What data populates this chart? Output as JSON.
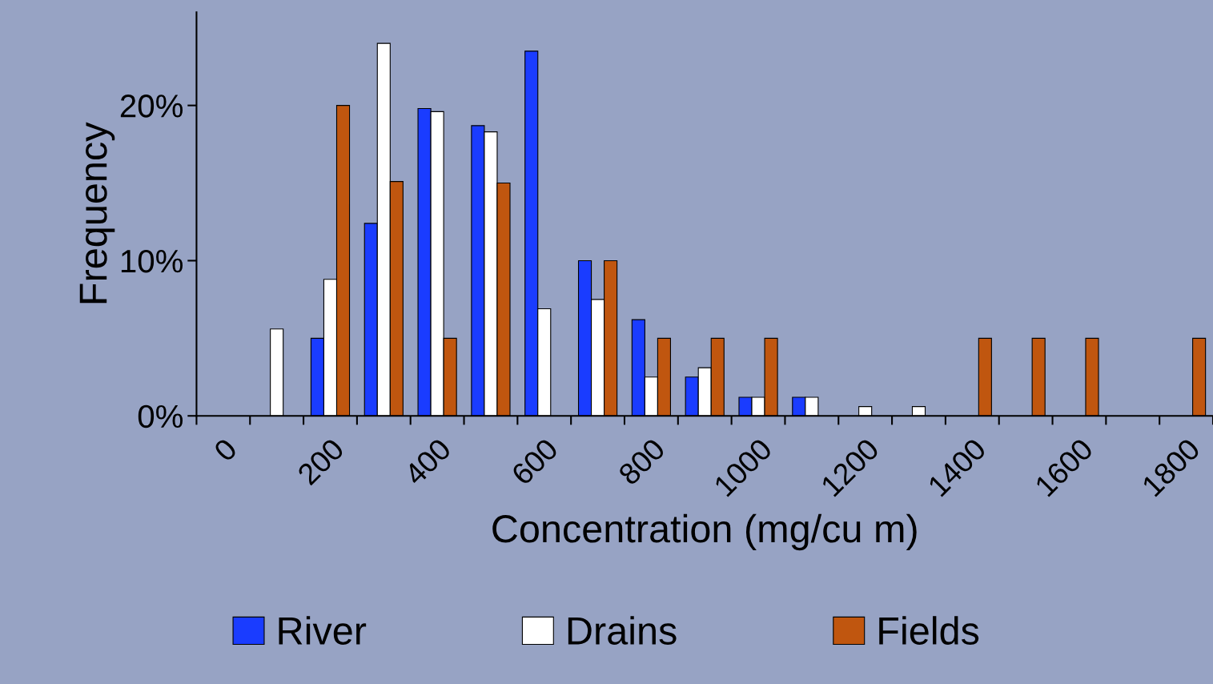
{
  "chart_data": {
    "type": "bar",
    "xlabel": "Concentration (mg/cu m)",
    "ylabel": "Frequency",
    "categories": [
      "0",
      null,
      "200",
      null,
      "400",
      null,
      "600",
      null,
      "800",
      null,
      "1000",
      null,
      "1200",
      null,
      "1400",
      null,
      "1600",
      null,
      "1800"
    ],
    "series": [
      {
        "name": "River",
        "color": "#1a3cff",
        "values": [
          null,
          null,
          5.0,
          12.4,
          19.8,
          18.7,
          23.5,
          10,
          6.2,
          2.5,
          1.2,
          1.2,
          null,
          null,
          null,
          null,
          null,
          null,
          null
        ]
      },
      {
        "name": "Drains",
        "color": "#ffffff",
        "values": [
          null,
          5.6,
          8.8,
          24.0,
          19.6,
          18.3,
          6.9,
          7.5,
          2.5,
          3.1,
          1.2,
          1.2,
          0.6,
          0.6,
          null,
          null,
          null,
          null,
          null
        ]
      },
      {
        "name": "Fields",
        "color": "#c0560f",
        "values": [
          null,
          null,
          20,
          15.1,
          5.0,
          15,
          null,
          10,
          5,
          5,
          5,
          null,
          null,
          null,
          5,
          5,
          5,
          null,
          5
        ]
      }
    ],
    "ylim": [
      0,
      26
    ],
    "yticks": [
      {
        "value": 0,
        "label": "0%"
      },
      {
        "value": 10,
        "label": "10%"
      },
      {
        "value": 20,
        "label": "20%"
      }
    ],
    "grid": false,
    "legend": "bottom"
  }
}
